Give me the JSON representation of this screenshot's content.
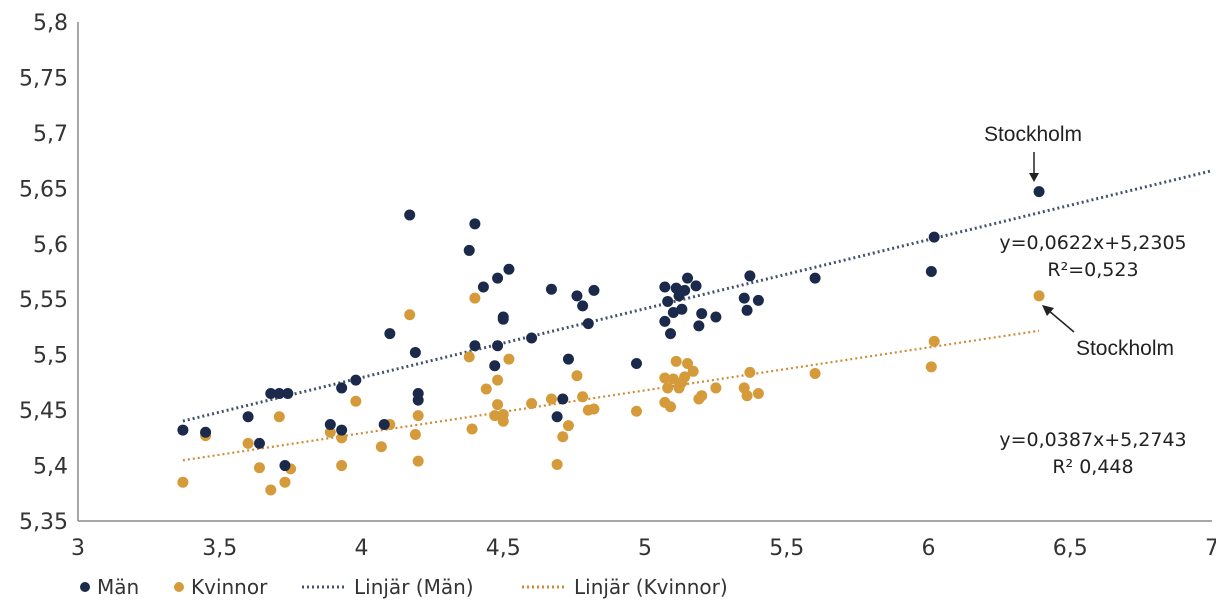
{
  "chart_data": {
    "type": "scatter",
    "title": "",
    "xlabel": "",
    "ylabel": "",
    "xlim": [
      3,
      7
    ],
    "ylim": [
      5.35,
      5.8
    ],
    "xticks": [
      "3",
      "3,5",
      "4",
      "4,5",
      "5",
      "5,5",
      "6",
      "6,5",
      "7"
    ],
    "yticks": [
      "5,35",
      "5,4",
      "5,45",
      "5,5",
      "5,55",
      "5,6",
      "5,65",
      "5,7",
      "5,75",
      "5,8"
    ],
    "grid": false,
    "legend_position": "bottom",
    "colors": {
      "man": "#1b2a4a",
      "kvinnor": "#d59a3a",
      "trend_man": "#44526b",
      "trend_kvinnor": "#d08a35"
    },
    "series": [
      {
        "name": "Män",
        "points": [
          [
            3.37,
            5.432
          ],
          [
            3.45,
            5.43
          ],
          [
            3.6,
            5.444
          ],
          [
            3.64,
            5.42
          ],
          [
            3.68,
            5.465
          ],
          [
            3.71,
            5.465
          ],
          [
            3.74,
            5.465
          ],
          [
            3.73,
            5.4
          ],
          [
            3.89,
            5.437
          ],
          [
            3.93,
            5.432
          ],
          [
            3.93,
            5.47
          ],
          [
            3.98,
            5.477
          ],
          [
            4.08,
            5.437
          ],
          [
            4.1,
            5.519
          ],
          [
            4.19,
            5.502
          ],
          [
            4.2,
            5.459
          ],
          [
            4.2,
            5.465
          ],
          [
            4.17,
            5.626
          ],
          [
            4.38,
            5.594
          ],
          [
            4.4,
            5.508
          ],
          [
            4.4,
            5.618
          ],
          [
            4.43,
            5.561
          ],
          [
            4.47,
            5.49
          ],
          [
            4.48,
            5.508
          ],
          [
            4.48,
            5.569
          ],
          [
            4.5,
            5.534
          ],
          [
            4.5,
            5.532
          ],
          [
            4.52,
            5.577
          ],
          [
            4.6,
            5.515
          ],
          [
            4.67,
            5.559
          ],
          [
            4.69,
            5.444
          ],
          [
            4.71,
            5.46
          ],
          [
            4.73,
            5.496
          ],
          [
            4.76,
            5.553
          ],
          [
            4.78,
            5.544
          ],
          [
            4.8,
            5.528
          ],
          [
            4.82,
            5.558
          ],
          [
            4.97,
            5.492
          ],
          [
            5.07,
            5.561
          ],
          [
            5.07,
            5.53
          ],
          [
            5.08,
            5.548
          ],
          [
            5.09,
            5.519
          ],
          [
            5.1,
            5.538
          ],
          [
            5.11,
            5.56
          ],
          [
            5.12,
            5.553
          ],
          [
            5.13,
            5.541
          ],
          [
            5.14,
            5.558
          ],
          [
            5.15,
            5.569
          ],
          [
            5.18,
            5.562
          ],
          [
            5.19,
            5.526
          ],
          [
            5.2,
            5.537
          ],
          [
            5.25,
            5.534
          ],
          [
            5.35,
            5.551
          ],
          [
            5.36,
            5.54
          ],
          [
            5.37,
            5.571
          ],
          [
            5.4,
            5.549
          ],
          [
            5.6,
            5.569
          ],
          [
            6.01,
            5.575
          ],
          [
            6.02,
            5.606
          ],
          [
            6.39,
            5.647
          ]
        ]
      },
      {
        "name": "Kvinnor",
        "points": [
          [
            3.37,
            5.385
          ],
          [
            3.45,
            5.427
          ],
          [
            3.6,
            5.42
          ],
          [
            3.64,
            5.398
          ],
          [
            3.68,
            5.378
          ],
          [
            3.71,
            5.444
          ],
          [
            3.73,
            5.385
          ],
          [
            3.75,
            5.397
          ],
          [
            3.89,
            5.43
          ],
          [
            3.93,
            5.4
          ],
          [
            3.93,
            5.425
          ],
          [
            3.98,
            5.458
          ],
          [
            4.07,
            5.417
          ],
          [
            4.1,
            5.437
          ],
          [
            4.17,
            5.536
          ],
          [
            4.19,
            5.428
          ],
          [
            4.2,
            5.445
          ],
          [
            4.2,
            5.404
          ],
          [
            4.38,
            5.498
          ],
          [
            4.39,
            5.433
          ],
          [
            4.4,
            5.551
          ],
          [
            4.44,
            5.469
          ],
          [
            4.47,
            5.445
          ],
          [
            4.48,
            5.455
          ],
          [
            4.48,
            5.477
          ],
          [
            4.5,
            5.44
          ],
          [
            4.5,
            5.446
          ],
          [
            4.52,
            5.496
          ],
          [
            4.6,
            5.456
          ],
          [
            4.67,
            5.46
          ],
          [
            4.69,
            5.401
          ],
          [
            4.71,
            5.426
          ],
          [
            4.73,
            5.436
          ],
          [
            4.76,
            5.481
          ],
          [
            4.78,
            5.462
          ],
          [
            4.8,
            5.45
          ],
          [
            4.82,
            5.451
          ],
          [
            4.97,
            5.449
          ],
          [
            5.07,
            5.479
          ],
          [
            5.07,
            5.457
          ],
          [
            5.08,
            5.47
          ],
          [
            5.09,
            5.453
          ],
          [
            5.1,
            5.478
          ],
          [
            5.11,
            5.494
          ],
          [
            5.12,
            5.47
          ],
          [
            5.13,
            5.475
          ],
          [
            5.14,
            5.48
          ],
          [
            5.15,
            5.492
          ],
          [
            5.17,
            5.485
          ],
          [
            5.19,
            5.46
          ],
          [
            5.2,
            5.463
          ],
          [
            5.25,
            5.47
          ],
          [
            5.35,
            5.47
          ],
          [
            5.36,
            5.463
          ],
          [
            5.37,
            5.484
          ],
          [
            5.4,
            5.465
          ],
          [
            5.6,
            5.483
          ],
          [
            6.01,
            5.489
          ],
          [
            6.02,
            5.512
          ],
          [
            6.39,
            5.553
          ]
        ]
      }
    ],
    "trendlines": [
      {
        "name": "Linjär (Män)",
        "slope": 0.0622,
        "intercept": 5.2305,
        "x_range": [
          3.37,
          7
        ]
      },
      {
        "name": "Linjär (Kvinnor)",
        "slope": 0.0387,
        "intercept": 5.2743,
        "x_range": [
          3.37,
          6.39
        ]
      }
    ],
    "annotations": {
      "man_equation": "y=0,0622x+5,2305",
      "man_r2": "R²=0,523",
      "kvinnor_equation": "y=0,0387x+5,2743",
      "kvinnor_r2": "R² 0,448",
      "stockholm_man": "Stockholm",
      "stockholm_kvinnor": "Stockholm"
    },
    "legend": [
      "Män",
      "Kvinnor",
      "Linjär (Män)",
      "Linjär (Kvinnor)"
    ]
  }
}
